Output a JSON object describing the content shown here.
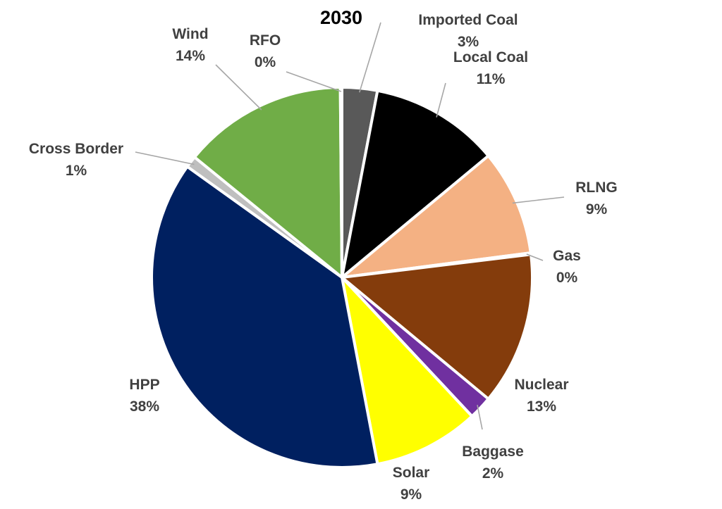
{
  "chart_data": {
    "type": "pie",
    "title": "2030",
    "slices": [
      {
        "name": "Imported Coal",
        "value": 3,
        "label": "3%",
        "color": "#595959"
      },
      {
        "name": "Local Coal",
        "value": 11,
        "label": "11%",
        "color": "#000000"
      },
      {
        "name": "RLNG",
        "value": 9,
        "label": "9%",
        "color": "#f4b183"
      },
      {
        "name": "Gas",
        "value": 0,
        "label": "0%",
        "color": "#ed7d31"
      },
      {
        "name": "Nuclear",
        "value": 13,
        "label": "13%",
        "color": "#843c0c"
      },
      {
        "name": "Baggase",
        "value": 2,
        "label": "2%",
        "color": "#7030a0"
      },
      {
        "name": "Solar",
        "value": 9,
        "label": "9%",
        "color": "#ffff00"
      },
      {
        "name": "HPP",
        "value": 38,
        "label": "38%",
        "color": "#002060"
      },
      {
        "name": "Cross Border",
        "value": 1,
        "label": "1%",
        "color": "#bfbfbf"
      },
      {
        "name": "Wind",
        "value": 14,
        "label": "14%",
        "color": "#70ad47"
      },
      {
        "name": "RFO",
        "value": 0,
        "label": "0%",
        "color": "#a5a5a5"
      }
    ]
  }
}
